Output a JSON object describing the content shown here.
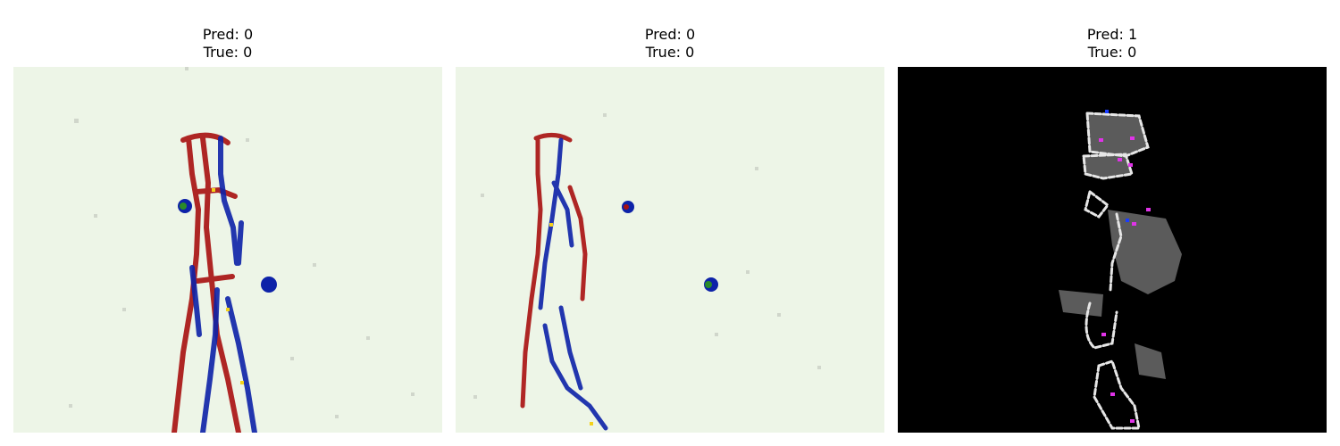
{
  "figure": {
    "panels": [
      {
        "pred_label": "Pred: 0",
        "true_label": "True: 0",
        "colormap": "diverging red-white-blue on pale green background"
      },
      {
        "pred_label": "Pred: 0",
        "true_label": "True: 0",
        "colormap": "diverging red-white-blue on pale green background"
      },
      {
        "pred_label": "Pred: 1",
        "true_label": "True: 0",
        "colormap": "grayscale with magenta highlights on black background"
      }
    ],
    "colors": {
      "light_background": "#edf5e7",
      "red": "#a81010",
      "blue": "#0d22a8",
      "black": "#000000",
      "magenta": "#e033e8"
    }
  }
}
